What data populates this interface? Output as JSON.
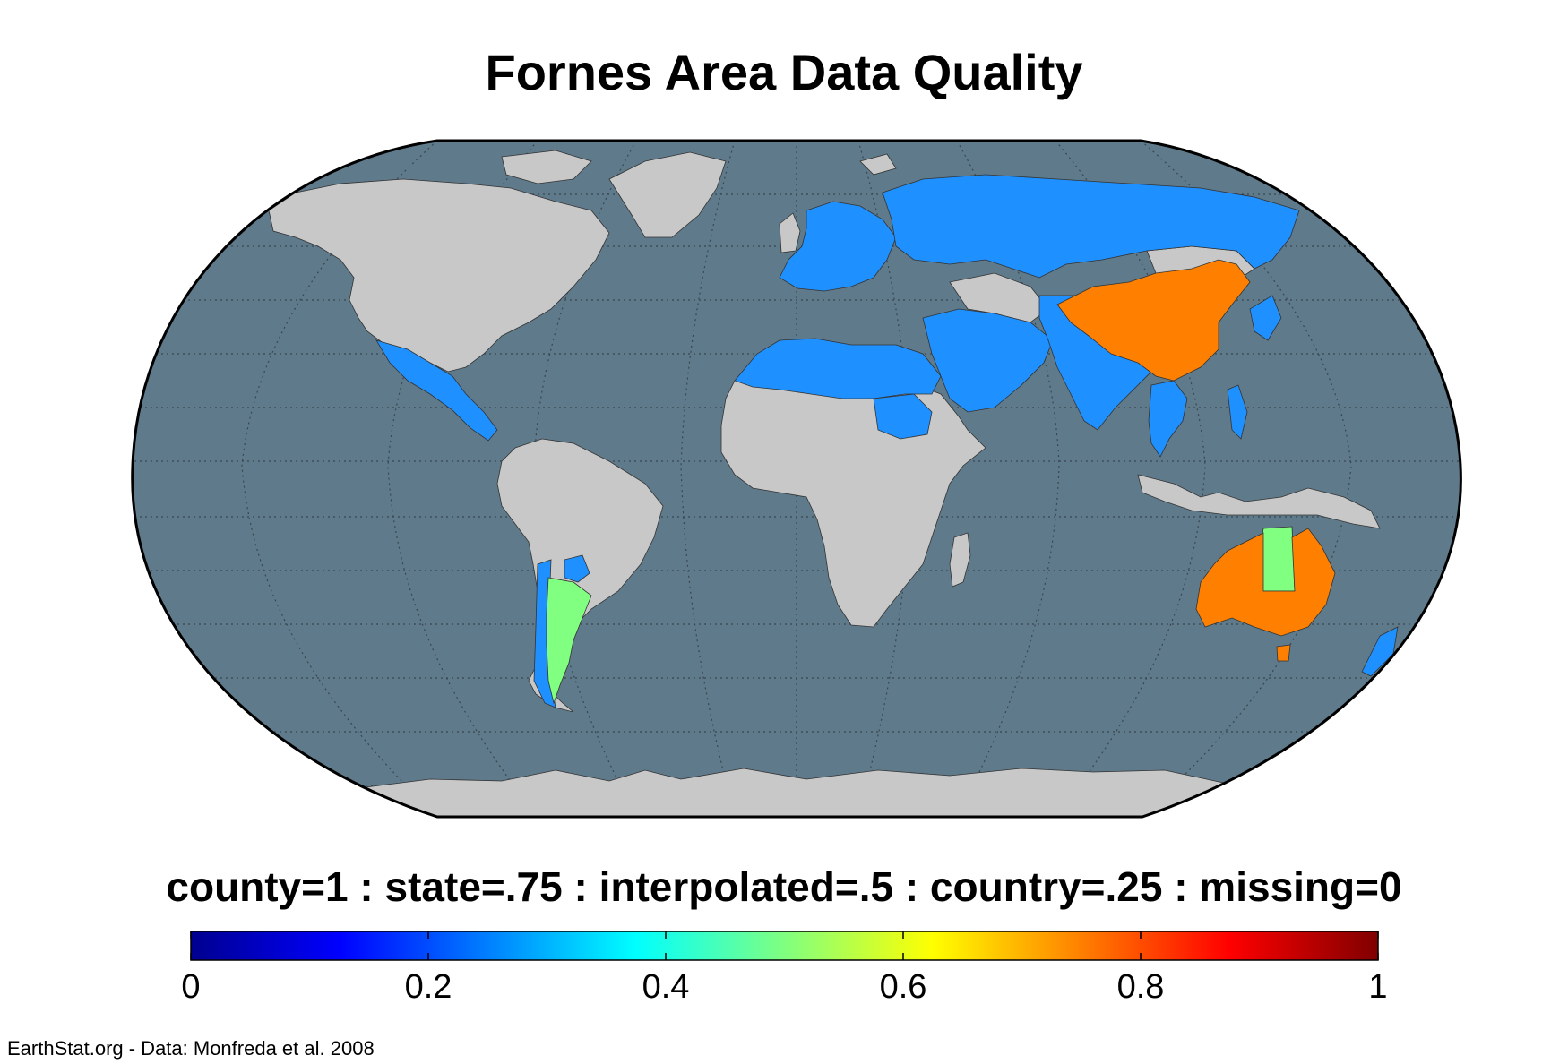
{
  "title": "Fornes Area Data Quality",
  "legend_description": "county=1 : state=.75 : interpolated=.5 : country=.25 : missing=0",
  "credit": "EarthStat.org - Data: Monfreda et al. 2008",
  "colors": {
    "ocean": "#5F7A8B",
    "land_missing": "#C8C8C8",
    "country": "#1E90FF",
    "interpolated": "#80FF80",
    "state": "#FF8000",
    "graticule": "#3A4650",
    "border": "#333333"
  },
  "colorbar": {
    "min": 0,
    "max": 1,
    "colormap": "jet",
    "ticks": [
      {
        "value": 0,
        "label": "0"
      },
      {
        "value": 0.2,
        "label": "0.2"
      },
      {
        "value": 0.4,
        "label": "0.4"
      },
      {
        "value": 0.6,
        "label": "0.6"
      },
      {
        "value": 0.8,
        "label": "0.8"
      },
      {
        "value": 1,
        "label": "1"
      }
    ]
  },
  "map": {
    "projection": "Robinson",
    "graticule": true,
    "regions_by_quality": [
      {
        "region": "Argentina (most provinces)",
        "quality": 0.5
      },
      {
        "region": "Australia (central state)",
        "quality": 0.5
      },
      {
        "region": "China",
        "quality": 0.75
      },
      {
        "region": "Australia (other states)",
        "quality": 0.75
      },
      {
        "region": "Mexico",
        "quality": 0.25
      },
      {
        "region": "Central America",
        "quality": 0.25
      },
      {
        "region": "Europe",
        "quality": 0.25
      },
      {
        "region": "Russia and Central Asia",
        "quality": 0.25
      },
      {
        "region": "North Africa",
        "quality": 0.25
      },
      {
        "region": "Middle East",
        "quality": 0.25
      },
      {
        "region": "South Asia",
        "quality": 0.25
      },
      {
        "region": "Mainland Southeast Asia",
        "quality": 0.25
      },
      {
        "region": "Philippines",
        "quality": 0.25
      },
      {
        "region": "Japan and Korea",
        "quality": 0.25
      },
      {
        "region": "New Zealand",
        "quality": 0.25
      },
      {
        "region": "Chile and Paraguay",
        "quality": 0.25
      },
      {
        "region": "North America (USA, Canada)",
        "quality": 0
      },
      {
        "region": "South America (other)",
        "quality": 0
      },
      {
        "region": "Sub-Saharan Africa",
        "quality": 0
      },
      {
        "region": "Greenland",
        "quality": 0
      },
      {
        "region": "Indonesia and New Guinea",
        "quality": 0
      },
      {
        "region": "Antarctica",
        "quality": 0
      }
    ]
  }
}
